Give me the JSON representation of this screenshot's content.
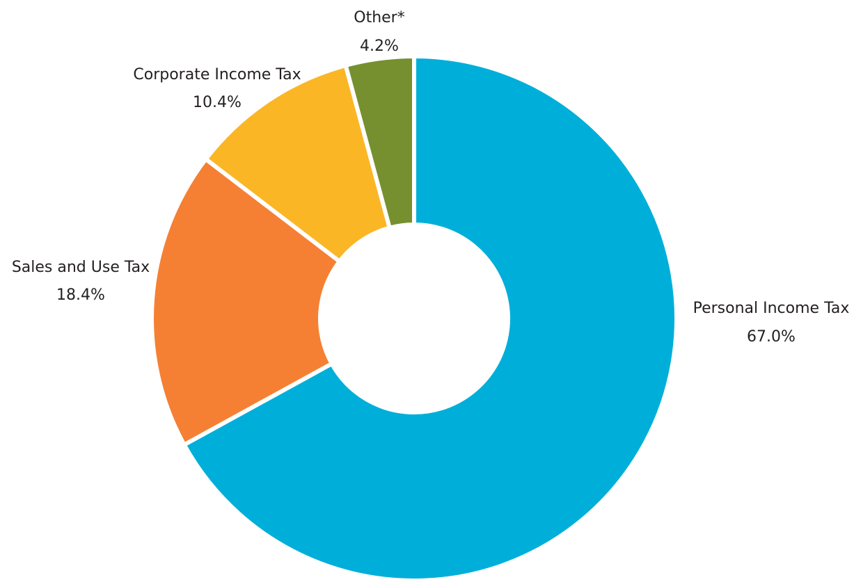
{
  "chart_data": {
    "type": "pie",
    "title": "",
    "donut": true,
    "slices": [
      {
        "label": "Personal Income Tax",
        "value": 67.0,
        "display": "67.0%",
        "color": "#00afd9"
      },
      {
        "label": "Sales and Use Tax",
        "value": 18.4,
        "display": "18.4%",
        "color": "#f58033"
      },
      {
        "label": "Corporate Income Tax",
        "value": 10.4,
        "display": "10.4%",
        "color": "#fbb625"
      },
      {
        "label": "Other*",
        "value": 4.2,
        "display": "4.2%",
        "color": "#76902f"
      }
    ]
  }
}
